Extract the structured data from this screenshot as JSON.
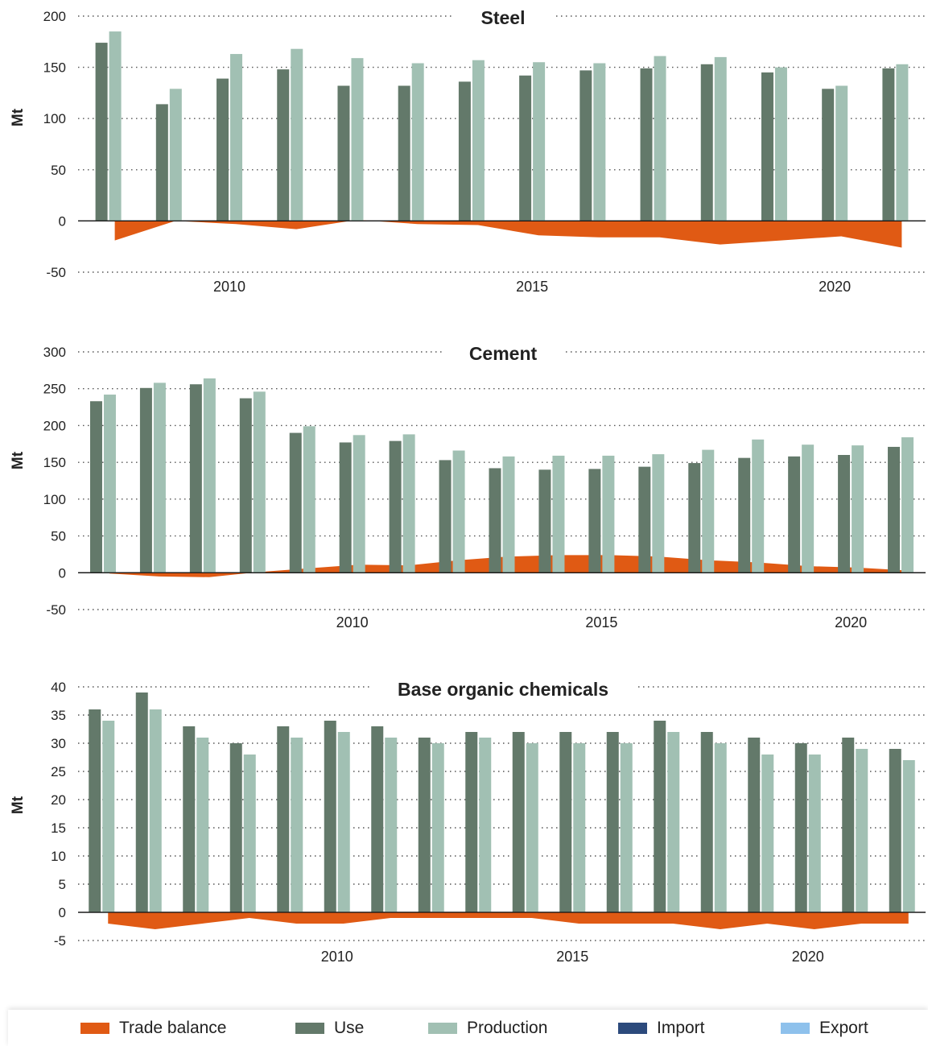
{
  "colors": {
    "trade_balance": "#E05A14",
    "use": "#63796A",
    "production": "#A1C0B3",
    "import": "#2C4A7C",
    "export": "#8EC1EC",
    "grid": "#555555",
    "axis": "#111111"
  },
  "legend": [
    {
      "label": "Trade balance",
      "color": "#E05A14"
    },
    {
      "label": "Use",
      "color": "#63796A"
    },
    {
      "label": "Production",
      "color": "#A1C0B3"
    },
    {
      "label": "Import",
      "color": "#2C4A7C"
    },
    {
      "label": "Export",
      "color": "#8EC1EC"
    }
  ],
  "chart_data": [
    {
      "type": "bar",
      "title": "Steel",
      "ylabel": "Mt",
      "ylim": [
        -50,
        200
      ],
      "yticks": [
        -50,
        0,
        50,
        100,
        150,
        200
      ],
      "x_tick_labels": [
        "2010",
        "2015",
        "2020"
      ],
      "x": [
        2008,
        2009,
        2010,
        2011,
        2012,
        2013,
        2014,
        2015,
        2016,
        2017,
        2018,
        2019,
        2020,
        2021
      ],
      "grid": true,
      "series": [
        {
          "name": "Use",
          "values": [
            174,
            114,
            139,
            148,
            132,
            132,
            136,
            142,
            147,
            149,
            153,
            145,
            129,
            149
          ]
        },
        {
          "name": "Production",
          "values": [
            185,
            129,
            163,
            168,
            159,
            154,
            157,
            155,
            154,
            161,
            160,
            150,
            132,
            153
          ]
        },
        {
          "name": "Trade balance",
          "values": [
            -19,
            0,
            -3,
            -8,
            1,
            -3,
            -4,
            -14,
            -16,
            -16,
            -23,
            -19,
            -15,
            -26
          ]
        }
      ]
    },
    {
      "type": "bar",
      "title": "Cement",
      "ylabel": "Mt",
      "ylim": [
        -50,
        300
      ],
      "yticks": [
        -50,
        0,
        50,
        100,
        150,
        200,
        250,
        300
      ],
      "x_tick_labels": [
        "2010",
        "2015",
        "2020"
      ],
      "x": [
        2005,
        2006,
        2007,
        2008,
        2009,
        2010,
        2011,
        2012,
        2013,
        2014,
        2015,
        2016,
        2017,
        2018,
        2019,
        2020,
        2021
      ],
      "grid": true,
      "series": [
        {
          "name": "Use",
          "values": [
            233,
            251,
            256,
            237,
            190,
            177,
            179,
            153,
            142,
            140,
            141,
            144,
            149,
            156,
            158,
            160,
            171
          ]
        },
        {
          "name": "Production",
          "values": [
            242,
            258,
            264,
            246,
            199,
            187,
            188,
            166,
            158,
            159,
            159,
            161,
            167,
            181,
            174,
            173,
            184
          ]
        },
        {
          "name": "Trade balance",
          "values": [
            -1,
            -5,
            -6,
            1,
            6,
            11,
            10,
            17,
            22,
            24,
            24,
            22,
            17,
            14,
            9,
            7,
            3
          ]
        }
      ]
    },
    {
      "type": "bar",
      "title": "Base organic chemicals",
      "ylabel": "Mt",
      "ylim": [
        -5,
        40
      ],
      "yticks": [
        -5,
        0,
        5,
        10,
        15,
        20,
        25,
        30,
        35,
        40
      ],
      "x_tick_labels": [
        "2010",
        "2015",
        "2020"
      ],
      "x": [
        2005,
        2006,
        2007,
        2008,
        2009,
        2010,
        2011,
        2012,
        2013,
        2014,
        2015,
        2016,
        2017,
        2018,
        2019,
        2020,
        2021,
        2022
      ],
      "grid": true,
      "series": [
        {
          "name": "Use",
          "values": [
            36,
            39,
            33,
            30,
            33,
            34,
            33,
            31,
            32,
            32,
            32,
            32,
            34,
            32,
            31,
            30,
            31,
            29
          ]
        },
        {
          "name": "Production",
          "values": [
            34,
            36,
            31,
            28,
            31,
            32,
            31,
            30,
            31,
            30,
            30,
            30,
            32,
            30,
            28,
            28,
            29,
            27
          ]
        },
        {
          "name": "Trade balance",
          "values": [
            -2,
            -3,
            -2,
            -1,
            -2,
            -2,
            -1,
            -1,
            -1,
            -1,
            -2,
            -2,
            -2,
            -3,
            -2,
            -3,
            -2,
            -2
          ]
        }
      ]
    }
  ]
}
